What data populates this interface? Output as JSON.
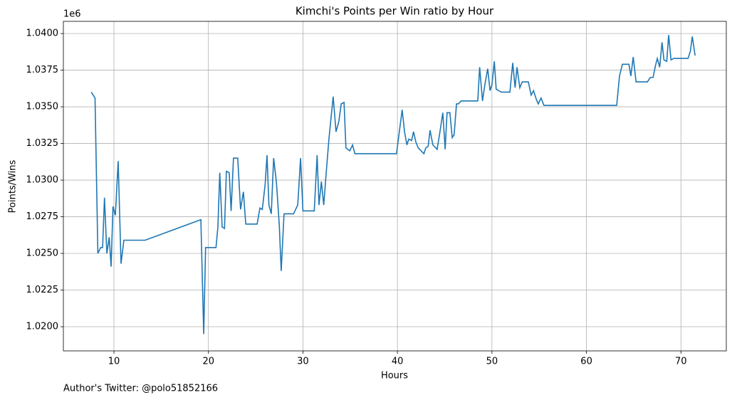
{
  "chart_data": {
    "type": "line",
    "title": "Kimchi's Points per Win ratio by Hour",
    "xlabel": "Hours",
    "ylabel": "Points/Wins",
    "y_offset_label": "1e6",
    "footer": "Author's Twitter: @polo51852166",
    "grid": true,
    "xlim": [
      4.65,
      74.8
    ],
    "xticks": [
      10,
      20,
      30,
      40,
      50,
      60,
      70
    ],
    "ylim": [
      1.01835,
      1.04083
    ],
    "yticks": [
      {
        "value": 1.02,
        "label": "1.0200"
      },
      {
        "value": 1.0225,
        "label": "1.0225"
      },
      {
        "value": 1.025,
        "label": "1.0250"
      },
      {
        "value": 1.0275,
        "label": "1.0275"
      },
      {
        "value": 1.03,
        "label": "1.0300"
      },
      {
        "value": 1.0325,
        "label": "1.0325"
      },
      {
        "value": 1.035,
        "label": "1.0350"
      },
      {
        "value": 1.0375,
        "label": "1.0375"
      },
      {
        "value": 1.04,
        "label": "1.0400"
      }
    ],
    "series": [
      {
        "color": "#1f77b4",
        "x": [
          7.6,
          8.0,
          8.3,
          8.6,
          8.8,
          9.0,
          9.25,
          9.5,
          9.7,
          9.9,
          10.15,
          10.45,
          10.75,
          11.05,
          13.3,
          19.2,
          19.5,
          19.7,
          20.8,
          21.0,
          21.2,
          21.45,
          21.7,
          21.9,
          22.2,
          22.4,
          22.65,
          23.1,
          23.4,
          23.7,
          23.95,
          25.15,
          25.45,
          25.7,
          26.0,
          26.2,
          26.4,
          26.65,
          26.9,
          27.2,
          27.5,
          27.7,
          28.0,
          29.0,
          29.45,
          29.75,
          30.0,
          31.2,
          31.5,
          31.7,
          31.95,
          32.2,
          32.45,
          32.75,
          33.2,
          33.5,
          33.8,
          34.05,
          34.35,
          34.55,
          34.95,
          35.25,
          35.5,
          39.9,
          40.2,
          40.5,
          40.75,
          41.0,
          41.2,
          41.5,
          41.7,
          41.95,
          42.2,
          42.5,
          42.8,
          43.0,
          43.25,
          43.45,
          43.75,
          44.2,
          44.5,
          44.8,
          45.05,
          45.25,
          45.55,
          45.8,
          46.0,
          46.25,
          46.45,
          46.75,
          48.5,
          48.7,
          49.0,
          49.25,
          49.55,
          49.8,
          50.0,
          50.25,
          50.45,
          51.0,
          51.9,
          52.2,
          52.45,
          52.65,
          52.95,
          53.2,
          53.85,
          54.15,
          54.4,
          54.7,
          54.9,
          55.2,
          55.5,
          63.2,
          63.5,
          63.8,
          64.5,
          64.7,
          64.95,
          65.25,
          65.6,
          66.0,
          66.45,
          66.75,
          67.05,
          67.3,
          67.5,
          67.75,
          68.0,
          68.2,
          68.5,
          68.7,
          68.95,
          69.25,
          70.75,
          71.0,
          71.2,
          71.5
        ],
        "values": [
          1.036,
          1.0356,
          1.025,
          1.0254,
          1.0254,
          1.0288,
          1.025,
          1.0261,
          1.0241,
          1.0282,
          1.0276,
          1.0313,
          1.0243,
          1.0259,
          1.0259,
          1.0273,
          1.0195,
          1.0254,
          1.0254,
          1.0268,
          1.0305,
          1.0268,
          1.0267,
          1.0306,
          1.0305,
          1.0279,
          1.0315,
          1.0315,
          1.028,
          1.0292,
          1.027,
          1.027,
          1.0281,
          1.028,
          1.0297,
          1.0317,
          1.0283,
          1.0277,
          1.0315,
          1.0298,
          1.0269,
          1.0238,
          1.0277,
          1.0277,
          1.0283,
          1.0315,
          1.0279,
          1.0279,
          1.0317,
          1.0283,
          1.0299,
          1.0283,
          1.0304,
          1.0328,
          1.0357,
          1.0333,
          1.034,
          1.0352,
          1.0353,
          1.0322,
          1.032,
          1.0324,
          1.0318,
          1.0318,
          1.0333,
          1.0348,
          1.0333,
          1.0324,
          1.0328,
          1.0327,
          1.0333,
          1.0326,
          1.0322,
          1.032,
          1.0318,
          1.0322,
          1.0323,
          1.0334,
          1.0324,
          1.0321,
          1.0333,
          1.0346,
          1.0321,
          1.0346,
          1.0346,
          1.0329,
          1.0331,
          1.0352,
          1.0352,
          1.0354,
          1.0354,
          1.0377,
          1.0354,
          1.0365,
          1.0376,
          1.0361,
          1.0365,
          1.0381,
          1.0362,
          1.036,
          1.036,
          1.038,
          1.0363,
          1.0377,
          1.0363,
          1.0367,
          1.0367,
          1.0358,
          1.0361,
          1.0355,
          1.0352,
          1.0356,
          1.0351,
          1.0351,
          1.0371,
          1.0379,
          1.0379,
          1.0371,
          1.0384,
          1.0367,
          1.0367,
          1.0367,
          1.0367,
          1.037,
          1.037,
          1.0378,
          1.0383,
          1.0377,
          1.0394,
          1.0382,
          1.0381,
          1.0399,
          1.0382,
          1.0383,
          1.0383,
          1.0388,
          1.0398,
          1.0385
        ]
      }
    ]
  }
}
